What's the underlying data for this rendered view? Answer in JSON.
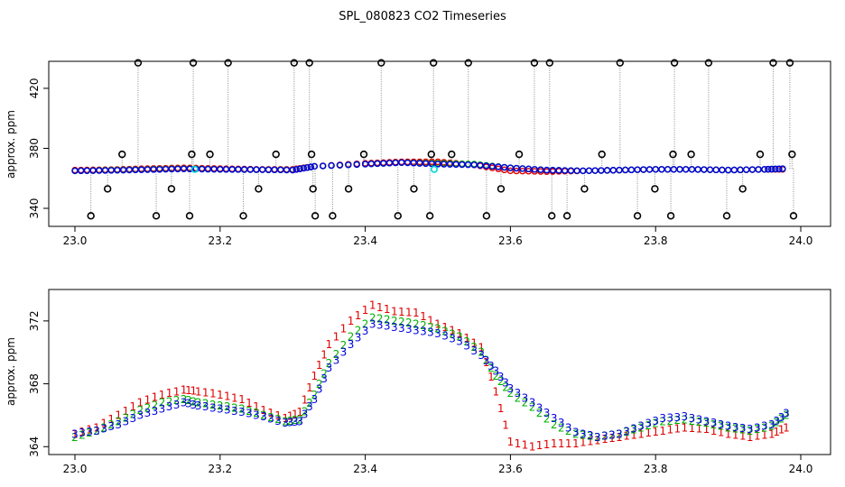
{
  "chart_data": [
    {
      "type": "scatter",
      "title": "SPL_080823  CO2 Timeseries",
      "xlabel": "",
      "ylabel": "approx. ppm",
      "xlim": [
        23.0,
        24.0
      ],
      "ylim": [
        334,
        438
      ],
      "xticks": [
        23.0,
        23.2,
        23.4,
        23.6,
        23.8,
        24.0
      ],
      "xtick_labels": [
        "23.0",
        "23.2",
        "23.4",
        "23.6",
        "23.8",
        "24.0"
      ],
      "yticks": [
        340,
        380,
        420
      ],
      "ytick_labels": [
        "340",
        "380",
        "420"
      ],
      "series": [
        {
          "name": "red",
          "color": "#e00000",
          "x": [
            23.0,
            23.05,
            23.1,
            23.15,
            23.2,
            23.25,
            23.3,
            23.33,
            23.4,
            23.45,
            23.5,
            23.55,
            23.6,
            23.65,
            23.7,
            23.75,
            23.8,
            23.85,
            23.9,
            23.95,
            23.98
          ],
          "y": [
            365.5,
            365.8,
            366.5,
            367,
            366.5,
            366,
            366,
            368,
            370,
            371,
            371,
            369,
            365,
            364.5,
            365,
            365.5,
            366,
            366,
            365.5,
            366,
            366
          ]
        },
        {
          "name": "green",
          "color": "#00b000",
          "x": [
            23.0,
            23.05,
            23.1,
            23.15,
            23.2,
            23.25,
            23.3,
            23.33,
            23.4,
            23.45,
            23.5,
            23.55,
            23.6,
            23.65,
            23.7,
            23.75,
            23.8,
            23.85,
            23.9,
            23.95,
            23.98
          ],
          "y": [
            365,
            365.5,
            366,
            366.5,
            366,
            365.8,
            365.6,
            368,
            369.5,
            370.5,
            370,
            369.5,
            367,
            365.5,
            365,
            365.5,
            366,
            366,
            365.5,
            366,
            366.5
          ]
        },
        {
          "name": "cyan",
          "color": "#00d8d8",
          "x": [
            23.165,
            23.495
          ],
          "y": [
            366,
            366
          ]
        },
        {
          "name": "blue",
          "color": "#0000e0",
          "x": [
            23.0,
            23.05,
            23.1,
            23.15,
            23.2,
            23.25,
            23.3,
            23.33,
            23.4,
            23.45,
            23.5,
            23.55,
            23.6,
            23.65,
            23.7,
            23.75,
            23.8,
            23.85,
            23.9,
            23.95,
            23.98
          ],
          "y": [
            365,
            365.3,
            365.8,
            366.3,
            366,
            365.8,
            365.5,
            368,
            369.5,
            370.5,
            369.5,
            369,
            367,
            365.5,
            365,
            365.5,
            366,
            366,
            365.5,
            366,
            366.5
          ]
        },
        {
          "name": "black-spikes",
          "color": "#000000",
          "x": [
            23.022,
            23.045,
            23.065,
            23.087,
            23.112,
            23.133,
            23.158,
            23.161,
            23.163,
            23.186,
            23.211,
            23.232,
            23.253,
            23.277,
            23.302,
            23.323,
            23.326,
            23.328,
            23.331,
            23.355,
            23.377,
            23.398,
            23.422,
            23.445,
            23.467,
            23.489,
            23.491,
            23.494,
            23.519,
            23.542,
            23.567,
            23.587,
            23.612,
            23.633,
            23.654,
            23.657,
            23.678,
            23.702,
            23.726,
            23.751,
            23.775,
            23.799,
            23.821,
            23.824,
            23.826,
            23.849,
            23.873,
            23.898,
            23.92,
            23.944,
            23.962,
            23.985,
            23.988,
            23.99
          ],
          "y": [
            335,
            353,
            376,
            437,
            335,
            353,
            335,
            376,
            437,
            376,
            437,
            335,
            353,
            376,
            437,
            437,
            376,
            353,
            335,
            335,
            353,
            376,
            437,
            335,
            353,
            335,
            376,
            437,
            376,
            437,
            335,
            353,
            376,
            437,
            437,
            335,
            335,
            353,
            376,
            437,
            335,
            353,
            335,
            376,
            437,
            376,
            437,
            335,
            353,
            376,
            437,
            437,
            376,
            335
          ]
        }
      ]
    },
    {
      "type": "scatter",
      "title": "",
      "xlabel": "",
      "ylabel": "approx. ppm",
      "xlim": [
        23.0,
        24.0
      ],
      "ylim": [
        363.5,
        374
      ],
      "xticks": [
        23.0,
        23.2,
        23.4,
        23.6,
        23.8,
        24.0
      ],
      "xtick_labels": [
        "23.0",
        "23.2",
        "23.4",
        "23.6",
        "23.8",
        "24.0"
      ],
      "yticks": [
        364,
        368,
        372
      ],
      "ytick_labels": [
        "364",
        "368",
        "372"
      ],
      "series": [
        {
          "name": "1",
          "symbol": "1",
          "color": "#e00000",
          "x": [
            23.0,
            23.03,
            23.06,
            23.09,
            23.12,
            23.15,
            23.17,
            23.2,
            23.23,
            23.26,
            23.29,
            23.31,
            23.33,
            23.35,
            23.38,
            23.41,
            23.44,
            23.47,
            23.5,
            23.53,
            23.56,
            23.58,
            23.6,
            23.63,
            23.66,
            23.69,
            23.72,
            23.75,
            23.78,
            23.81,
            23.84,
            23.87,
            23.9,
            23.93,
            23.96,
            23.98
          ],
          "y": [
            364.8,
            365.2,
            366.0,
            366.8,
            367.3,
            367.6,
            367.5,
            367.3,
            367.0,
            366.3,
            365.8,
            366.2,
            368.5,
            370.5,
            372.0,
            373.0,
            372.6,
            372.5,
            371.8,
            371.2,
            370.3,
            367.5,
            364.3,
            364.0,
            364.2,
            364.2,
            364.4,
            364.6,
            364.8,
            365.0,
            365.2,
            365.1,
            364.8,
            364.6,
            364.8,
            365.2
          ]
        },
        {
          "name": "2",
          "symbol": "2",
          "color": "#00b000",
          "x": [
            23.0,
            23.03,
            23.06,
            23.09,
            23.12,
            23.15,
            23.17,
            23.2,
            23.23,
            23.26,
            23.29,
            23.31,
            23.33,
            23.35,
            23.38,
            23.41,
            23.44,
            23.47,
            23.5,
            23.53,
            23.56,
            23.58,
            23.6,
            23.63,
            23.66,
            23.69,
            23.72,
            23.75,
            23.78,
            23.81,
            23.84,
            23.87,
            23.9,
            23.93,
            23.96,
            23.98
          ],
          "y": [
            364.6,
            365.0,
            365.6,
            366.3,
            366.8,
            367.0,
            366.8,
            366.6,
            366.4,
            366.0,
            365.6,
            365.7,
            367.3,
            369.3,
            371.0,
            372.2,
            372.0,
            371.8,
            371.5,
            371.0,
            370.0,
            368.5,
            367.4,
            366.5,
            365.4,
            364.8,
            364.6,
            364.8,
            365.2,
            365.6,
            365.7,
            365.5,
            365.2,
            365.0,
            365.3,
            366.0
          ]
        },
        {
          "name": "3",
          "symbol": "3",
          "color": "#0000e0",
          "x": [
            23.0,
            23.03,
            23.06,
            23.09,
            23.12,
            23.15,
            23.17,
            23.2,
            23.23,
            23.26,
            23.29,
            23.31,
            23.33,
            23.35,
            23.38,
            23.41,
            23.44,
            23.47,
            23.5,
            23.53,
            23.56,
            23.58,
            23.6,
            23.63,
            23.66,
            23.69,
            23.72,
            23.75,
            23.78,
            23.81,
            23.84,
            23.87,
            23.9,
            23.93,
            23.96,
            23.98
          ],
          "y": [
            364.8,
            365.0,
            365.4,
            366.0,
            366.4,
            366.8,
            366.6,
            366.4,
            366.2,
            365.9,
            365.5,
            365.6,
            367.0,
            369.0,
            370.5,
            371.8,
            371.6,
            371.4,
            371.2,
            370.7,
            369.8,
            368.8,
            367.7,
            366.8,
            365.8,
            364.9,
            364.6,
            364.8,
            365.3,
            365.8,
            365.9,
            365.6,
            365.3,
            365.1,
            365.4,
            366.1
          ]
        }
      ]
    }
  ]
}
